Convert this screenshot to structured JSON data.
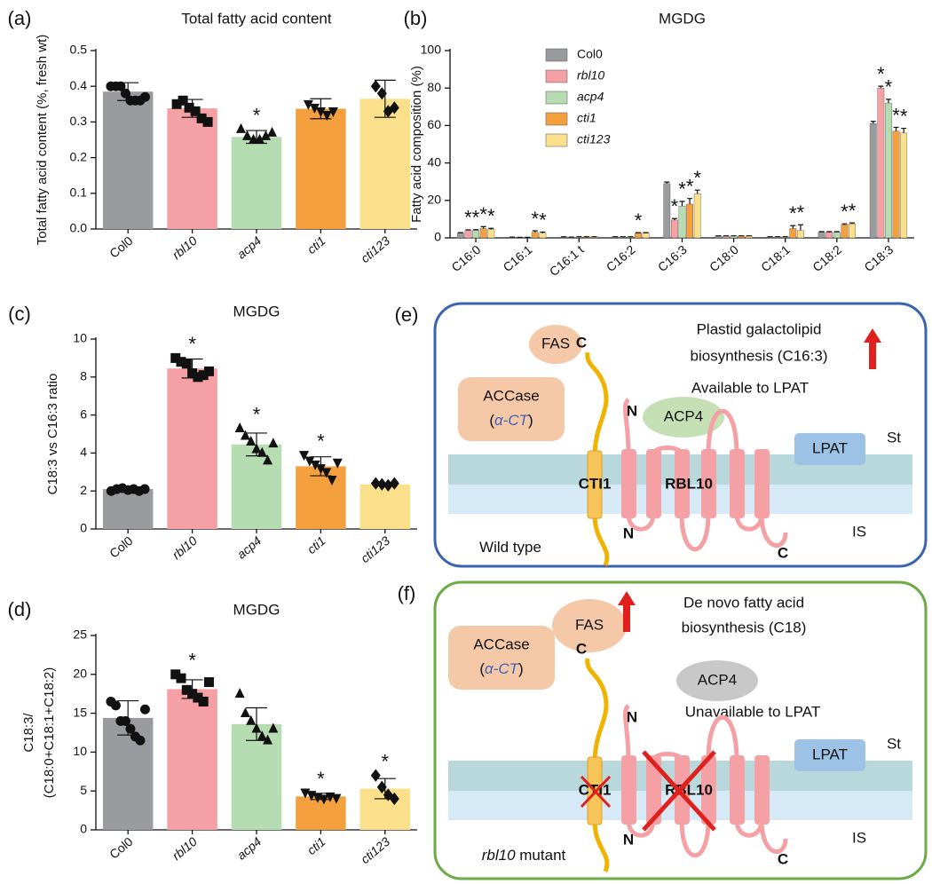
{
  "chart_data": [
    {
      "type": "bar",
      "label": "(a)",
      "title": "Total fatty acid content",
      "ylabel": [
        "Total fatty acid content (%, fresh wt)"
      ],
      "categories": [
        "Col0",
        "rbl10",
        "acp4",
        "cti1",
        "cti123"
      ],
      "colors": [
        "#9a9b9f",
        "#f4a0a4",
        "#b6dcb2",
        "#f5a03f",
        "#fbe08c"
      ],
      "markers": [
        "circle",
        "square",
        "triangle",
        "triangle-down",
        "diamond"
      ],
      "values": [
        0.385,
        0.338,
        0.258,
        0.337,
        0.365
      ],
      "errors": [
        0.025,
        0.025,
        0.018,
        0.028,
        0.052
      ],
      "points": [
        [
          0.4,
          0.4,
          0.4,
          0.38,
          0.36,
          0.36,
          0.36,
          0.37
        ],
        [
          0.35,
          0.36,
          0.34,
          0.33,
          0.31,
          0.3
        ],
        [
          0.28,
          0.26,
          0.25,
          0.25,
          0.26,
          0.27
        ],
        [
          0.35,
          0.34,
          0.33,
          0.32,
          0.33
        ],
        [
          0.4,
          0.38,
          0.33,
          0.34
        ]
      ],
      "sig_labels": [
        null,
        null,
        "*",
        null,
        null
      ],
      "ylim": [
        0,
        0.5
      ],
      "yticks": [
        {
          "value": 0,
          "label": "0.0"
        },
        0.1,
        0.2,
        0.3,
        0.4,
        0.5
      ]
    },
    {
      "type": "grouped_bar",
      "label": "(b)",
      "title": "MGDG",
      "ylabel": [
        "Fatty acid composition (%)"
      ],
      "categories": [
        "C16:0",
        "C16:1",
        "C16:1 t",
        "C16:2",
        "C16:3",
        "C18:0",
        "C18:1",
        "C18:2",
        "C18:3"
      ],
      "series": [
        {
          "name": "Col0",
          "color": "#9a9b9f",
          "values": [
            2.5,
            0.3,
            0.5,
            0.5,
            29,
            1,
            0.5,
            3,
            61
          ],
          "errors": [
            0.3,
            0.1,
            0.1,
            0.1,
            0.8,
            0.1,
            0.1,
            0.3,
            1.2
          ],
          "sig_labels": [
            null,
            null,
            null,
            null,
            null,
            null,
            null,
            null,
            null
          ]
        },
        {
          "name": "rbl10",
          "color": "#f4a0a4",
          "values": [
            4,
            0.2,
            0.3,
            0.5,
            9.5,
            1,
            0.5,
            3,
            80
          ],
          "errors": [
            0.3,
            0.1,
            0.1,
            0.1,
            0.8,
            0.1,
            0.1,
            0.3,
            1
          ],
          "sig_labels": [
            "*",
            null,
            null,
            null,
            "*",
            null,
            null,
            null,
            "*"
          ]
        },
        {
          "name": "acp4",
          "color": "#b6dcb2",
          "values": [
            4,
            0.2,
            0.5,
            0.5,
            17,
            1,
            0.5,
            3,
            72
          ],
          "errors": [
            0.4,
            0.1,
            0.1,
            0.1,
            2.5,
            0.1,
            0.1,
            0.3,
            2
          ],
          "sig_labels": [
            "*",
            null,
            null,
            null,
            "*",
            null,
            null,
            null,
            "*"
          ]
        },
        {
          "name": "cti1",
          "color": "#f5a03f",
          "values": [
            5,
            3,
            0.5,
            2.5,
            18,
            1,
            5,
            7,
            57
          ],
          "errors": [
            1,
            0.8,
            0.1,
            0.3,
            3,
            0.1,
            1.5,
            0.5,
            2
          ],
          "sig_labels": [
            "*",
            "*",
            null,
            "*",
            "*",
            null,
            "*",
            "*",
            "*"
          ]
        },
        {
          "name": "cti123",
          "color": "#fbe08c",
          "values": [
            4.5,
            2.5,
            0.5,
            2.5,
            23.5,
            1,
            4,
            7.5,
            56
          ],
          "errors": [
            0.6,
            0.6,
            0.1,
            0.3,
            2,
            0.1,
            3,
            0.5,
            2.5
          ],
          "sig_labels": [
            "*",
            "*",
            null,
            null,
            "*",
            null,
            "*",
            "*",
            "*"
          ]
        }
      ],
      "ylim": [
        0,
        100
      ],
      "yticks": [
        0,
        20,
        40,
        60,
        80,
        100
      ]
    },
    {
      "type": "bar",
      "label": "(c)",
      "title": "MGDG",
      "ylabel": [
        "C18:3 vs C16:3 ratio"
      ],
      "categories": [
        "Col0",
        "rbl10",
        "acp4",
        "cti1",
        "cti123"
      ],
      "colors": [
        "#9a9b9f",
        "#f4a0a4",
        "#b6dcb2",
        "#f5a03f",
        "#fbe08c"
      ],
      "markers": [
        "circle",
        "square",
        "triangle",
        "triangle-down",
        "diamond"
      ],
      "values": [
        2.1,
        8.45,
        4.45,
        3.3,
        2.35
      ],
      "errors": [
        0.1,
        0.5,
        0.6,
        0.5,
        0.06
      ],
      "points": [
        [
          2.0,
          2.1,
          2.15,
          2.05,
          2.1,
          2.0,
          2.1
        ],
        [
          9.0,
          8.8,
          8.7,
          8.2,
          8.0,
          8.1,
          8.3
        ],
        [
          5.3,
          4.9,
          4.6,
          4.2,
          4.0,
          3.6,
          4.5
        ],
        [
          3.9,
          3.6,
          3.4,
          3.2,
          3.0,
          2.6,
          3.5
        ],
        [
          2.4,
          2.35,
          2.3,
          2.4
        ]
      ],
      "sig_labels": [
        null,
        "*",
        "*",
        "*",
        null
      ],
      "ylim": [
        0,
        10
      ],
      "yticks": [
        0,
        2,
        4,
        6,
        8,
        10
      ]
    },
    {
      "type": "bar",
      "label": "(d)",
      "title": "MGDG",
      "ylabel": [
        "C18:3/",
        "(C18:0+C18:1+C18:2)"
      ],
      "categories": [
        "Col0",
        "rbl10",
        "acp4",
        "cti1",
        "cti123"
      ],
      "colors": [
        "#9a9b9f",
        "#f4a0a4",
        "#b6dcb2",
        "#f5a03f",
        "#fbe08c"
      ],
      "markers": [
        "circle",
        "square",
        "triangle",
        "triangle-down",
        "diamond"
      ],
      "values": [
        14.4,
        18.1,
        13.6,
        4.3,
        5.3
      ],
      "errors": [
        2.2,
        1.2,
        2.1,
        0.4,
        1.3
      ],
      "points": [
        [
          16.5,
          16,
          14,
          14,
          13,
          12,
          11.5,
          15.5
        ],
        [
          20,
          19.5,
          18,
          17.5,
          17,
          16.5,
          19
        ],
        [
          17.5,
          15,
          14,
          13,
          12,
          11.5,
          13
        ],
        [
          4.8,
          4.5,
          4.2,
          4.0,
          4.3,
          4.1
        ],
        [
          7,
          5.5,
          4.5,
          4
        ]
      ],
      "sig_labels": [
        null,
        "*",
        null,
        "*",
        "*"
      ],
      "ylim": [
        0,
        25
      ],
      "yticks": [
        0,
        5,
        10,
        15,
        20,
        25
      ]
    }
  ],
  "diagrams": [
    {
      "label": "(e)",
      "fas": "FAS",
      "note": [
        "Plastid galactolipid",
        "biosynthesis (C16:3)"
      ],
      "status": "Available to LPAT",
      "accase": "ACCase",
      "accase_sub": [
        "(",
        "α-CT",
        ")"
      ],
      "acp4": "ACP4",
      "lpat": "LPAT",
      "stroma": "St",
      "ims": "IS",
      "cti1": "CTI1",
      "rbl10": "RBL10",
      "termini": [
        "C",
        "N",
        "N",
        "C"
      ],
      "caption": [
        "Wild type"
      ]
    },
    {
      "label": "(f)",
      "fas": "FAS",
      "note": [
        "De novo fatty acid",
        "biosynthesis (C18)"
      ],
      "status": "Unavailable to LPAT",
      "accase": "ACCase",
      "accase_sub": [
        "(",
        "α-CT",
        ")"
      ],
      "acp4": "ACP4",
      "lpat": "LPAT",
      "stroma": "St",
      "ims": "IS",
      "cti1": "CTI1",
      "rbl10": "RBL10",
      "termini": [
        "C",
        "N",
        "N",
        "C"
      ],
      "caption": [
        "rbl10",
        " mutant"
      ]
    }
  ]
}
